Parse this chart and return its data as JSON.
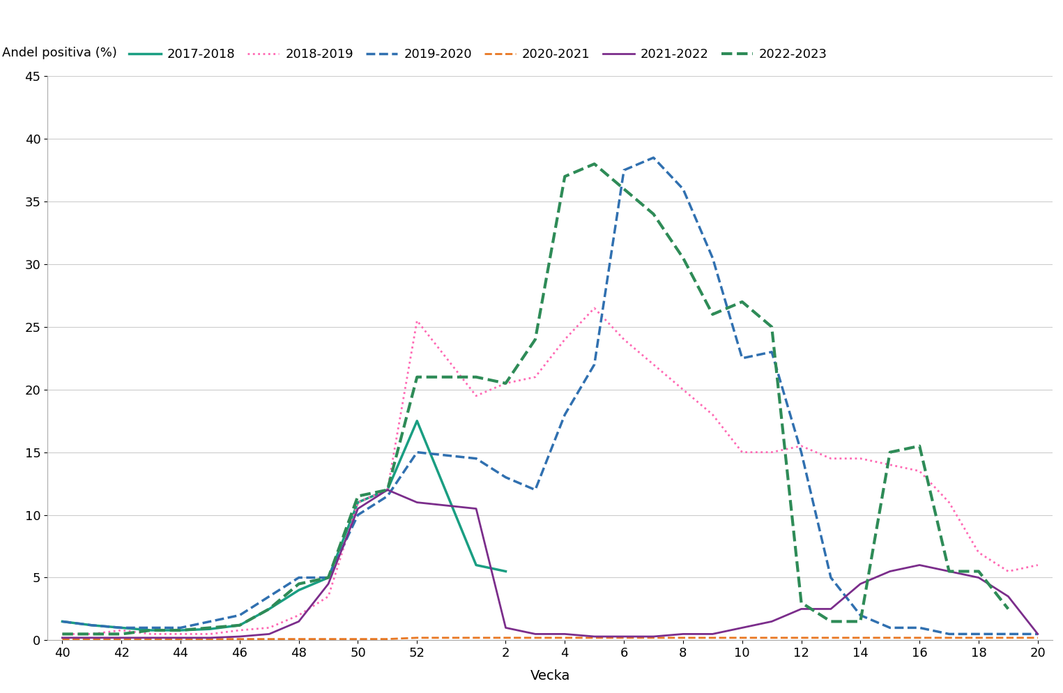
{
  "title": "",
  "ylabel": "Andel positiva (%)",
  "xlabel": "Vecka",
  "ylim": [
    0,
    45
  ],
  "yticks": [
    0,
    5,
    10,
    15,
    20,
    25,
    30,
    35,
    40,
    45
  ],
  "x_tick_labels": [
    "40",
    "42",
    "44",
    "46",
    "48",
    "50",
    "52",
    "2",
    "4",
    "6",
    "8",
    "10",
    "12",
    "14",
    "16",
    "18",
    "20"
  ],
  "x_tick_weeks": [
    40,
    42,
    44,
    46,
    48,
    50,
    52,
    2,
    4,
    6,
    8,
    10,
    12,
    14,
    16,
    18,
    20
  ],
  "background_color": "#ffffff",
  "series": [
    {
      "label": "2017-2018",
      "color": "#1a9e82",
      "linestyle": "solid",
      "linewidth": 2.5,
      "x": [
        40,
        41,
        42,
        43,
        44,
        45,
        46,
        47,
        48,
        49,
        50,
        51,
        52,
        1,
        2,
        3
      ],
      "y": [
        1.5,
        1.2,
        1.0,
        0.8,
        0.8,
        0.9,
        1.2,
        2.5,
        4.0,
        5.0,
        11.0,
        12.0,
        17.5,
        6.0,
        5.5,
        null
      ]
    },
    {
      "label": "2018-2019",
      "color": "#ff69b4",
      "linestyle": "dotted",
      "linewidth": 2.0,
      "x": [
        40,
        41,
        42,
        43,
        44,
        45,
        46,
        47,
        48,
        49,
        50,
        51,
        52,
        1,
        2,
        3,
        4,
        5,
        6,
        7,
        8,
        9,
        10,
        11,
        12,
        13,
        14,
        15,
        16,
        17,
        18,
        19,
        20
      ],
      "y": [
        0.5,
        0.5,
        0.8,
        0.5,
        0.5,
        0.5,
        0.8,
        1.0,
        2.0,
        3.5,
        11.0,
        12.0,
        25.5,
        19.5,
        20.5,
        21.0,
        24.0,
        26.5,
        24.0,
        22.0,
        20.0,
        18.0,
        15.0,
        15.0,
        15.5,
        14.5,
        14.5,
        14.0,
        13.5,
        11.0,
        7.0,
        5.5,
        6.0
      ]
    },
    {
      "label": "2019-2020",
      "color": "#3070b0",
      "linestyle": "dashed",
      "linewidth": 2.5,
      "x": [
        40,
        41,
        42,
        43,
        44,
        45,
        46,
        47,
        48,
        49,
        50,
        51,
        52,
        1,
        2,
        3,
        4,
        5,
        6,
        7,
        8,
        9,
        10,
        11,
        12,
        13,
        14,
        15,
        16,
        17,
        18,
        19,
        20
      ],
      "y": [
        1.5,
        1.2,
        1.0,
        1.0,
        1.0,
        1.5,
        2.0,
        3.5,
        5.0,
        5.0,
        10.0,
        11.5,
        15.0,
        14.5,
        13.0,
        12.0,
        18.0,
        22.0,
        37.5,
        38.5,
        36.0,
        30.5,
        22.5,
        23.0,
        15.0,
        5.0,
        2.0,
        1.0,
        1.0,
        0.5,
        0.5,
        0.5,
        0.5
      ]
    },
    {
      "label": "2020-2021",
      "color": "#e87722",
      "linestyle": "dashed",
      "linewidth": 2.0,
      "x": [
        40,
        41,
        42,
        43,
        44,
        45,
        46,
        47,
        48,
        49,
        50,
        51,
        52,
        1,
        2,
        3,
        4,
        5,
        6,
        7,
        8,
        9,
        10,
        11,
        12,
        13,
        14,
        15,
        16,
        17,
        18,
        19,
        20
      ],
      "y": [
        0.1,
        0.1,
        0.1,
        0.1,
        0.1,
        0.1,
        0.1,
        0.1,
        0.1,
        0.1,
        0.1,
        0.1,
        0.2,
        0.2,
        0.2,
        0.2,
        0.2,
        0.2,
        0.2,
        0.2,
        0.2,
        0.2,
        0.2,
        0.2,
        0.2,
        0.2,
        0.2,
        0.2,
        0.2,
        0.2,
        0.2,
        0.2,
        0.2
      ]
    },
    {
      "label": "2021-2022",
      "color": "#7b2d8b",
      "linestyle": "solid",
      "linewidth": 2.0,
      "x": [
        40,
        41,
        42,
        43,
        44,
        45,
        46,
        47,
        48,
        49,
        50,
        51,
        52,
        1,
        2,
        3,
        4,
        5,
        6,
        7,
        8,
        9,
        10,
        11,
        12,
        13,
        14,
        15,
        16,
        17,
        18,
        19,
        20
      ],
      "y": [
        0.2,
        0.2,
        0.2,
        0.2,
        0.2,
        0.2,
        0.3,
        0.5,
        1.5,
        4.5,
        10.5,
        12.0,
        11.0,
        10.5,
        1.0,
        0.5,
        0.5,
        0.3,
        0.3,
        0.3,
        0.5,
        0.5,
        1.0,
        1.5,
        2.5,
        2.5,
        4.5,
        5.5,
        6.0,
        5.5,
        5.0,
        3.5,
        0.5
      ]
    },
    {
      "label": "2022-2023",
      "color": "#2e8b57",
      "linestyle": "dashed",
      "linewidth": 3.0,
      "x": [
        40,
        41,
        42,
        43,
        44,
        45,
        46,
        47,
        48,
        49,
        50,
        51,
        52,
        1,
        2,
        3,
        4,
        5,
        6,
        7,
        8,
        9,
        10,
        11,
        12,
        13,
        14,
        15,
        16,
        17,
        18,
        19,
        20
      ],
      "y": [
        0.5,
        0.5,
        0.5,
        0.8,
        0.8,
        1.0,
        1.2,
        2.5,
        4.5,
        5.0,
        11.5,
        12.0,
        21.0,
        21.0,
        20.5,
        24.0,
        37.0,
        38.0,
        36.0,
        34.0,
        30.5,
        26.0,
        27.0,
        25.0,
        3.0,
        1.5,
        1.5,
        15.0,
        15.5,
        5.5,
        5.5,
        2.5,
        null
      ]
    }
  ]
}
